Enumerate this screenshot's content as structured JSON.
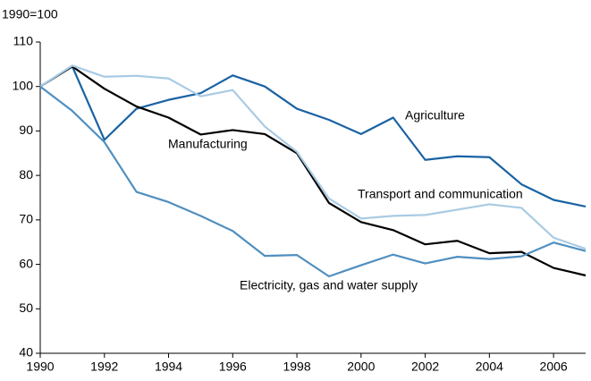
{
  "chart_data": {
    "type": "line",
    "ylabel": "1990=100",
    "x": [
      1990,
      1991,
      1992,
      1993,
      1994,
      1995,
      1996,
      1997,
      1998,
      1999,
      2000,
      2001,
      2002,
      2003,
      2004,
      2005,
      2006,
      2007
    ],
    "xlim": [
      1990,
      2007
    ],
    "xticks": [
      1990,
      1992,
      1994,
      1996,
      1998,
      2000,
      2002,
      2004,
      2006
    ],
    "ylim": [
      40,
      110
    ],
    "yticks": [
      40,
      50,
      60,
      70,
      80,
      90,
      100,
      110
    ],
    "grid": false,
    "series": [
      {
        "name": "Agriculture",
        "color": "#1a62a3",
        "values": [
          100,
          104.5,
          88,
          95,
          97,
          98.5,
          102.5,
          100,
          95,
          92.5,
          89.3,
          93,
          83.5,
          84.3,
          84.1,
          78,
          74.5,
          73
        ]
      },
      {
        "name": "Manufacturing",
        "color": "#000000",
        "values": [
          100,
          104.5,
          99.5,
          95.5,
          93,
          89.2,
          90.2,
          89.3,
          85,
          73.8,
          69.5,
          67.7,
          64.5,
          65.3,
          62.5,
          62.8,
          59.2,
          57.5
        ]
      },
      {
        "name": "Transport and communication",
        "color": "#a9cbe3",
        "values": [
          100,
          104.7,
          102.2,
          102.4,
          101.8,
          97.8,
          99.2,
          91,
          85.3,
          74.8,
          70.3,
          70.9,
          71.1,
          72.3,
          73.5,
          72.7,
          66,
          63.5
        ]
      },
      {
        "name": "Electricity, gas and water supply",
        "color": "#4f8fc0",
        "values": [
          100,
          94.5,
          87.5,
          76.3,
          74,
          70.9,
          67.5,
          61.9,
          62.1,
          57.3,
          59.8,
          62.2,
          60.2,
          61.7,
          61.2,
          61.8,
          64.9,
          63
        ]
      }
    ]
  }
}
